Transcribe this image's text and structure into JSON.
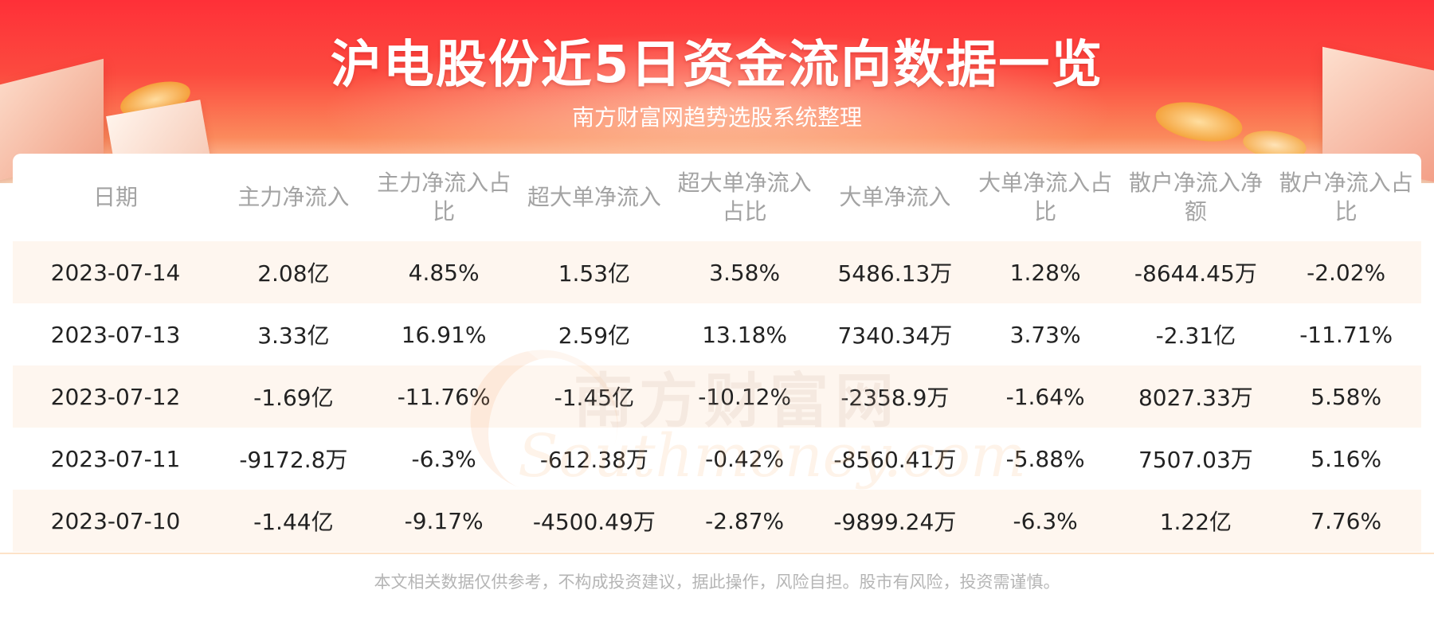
{
  "header": {
    "title": "沪电股份近5日资金流向数据一览",
    "subtitle": "南方财富网趋势选股系统整理"
  },
  "watermark": {
    "cn": "南方财富网",
    "en": "Southmoney.com"
  },
  "table": {
    "columns": [
      "日期",
      "主力净流入",
      "主力净流入占比",
      "超大单净流入",
      "超大单净流入占比",
      "大单净流入",
      "大单净流入占比",
      "散户净流入净额",
      "散户净流入占比"
    ],
    "rows": [
      [
        "2023-07-14",
        "2.08亿",
        "4.85%",
        "1.53亿",
        "3.58%",
        "5486.13万",
        "1.28%",
        "-8644.45万",
        "-2.02%"
      ],
      [
        "2023-07-13",
        "3.33亿",
        "16.91%",
        "2.59亿",
        "13.18%",
        "7340.34万",
        "3.73%",
        "-2.31亿",
        "-11.71%"
      ],
      [
        "2023-07-12",
        "-1.69亿",
        "-11.76%",
        "-1.45亿",
        "-10.12%",
        "-2358.9万",
        "-1.64%",
        "8027.33万",
        "5.58%"
      ],
      [
        "2023-07-11",
        "-9172.8万",
        "-6.3%",
        "-612.38万",
        "-0.42%",
        "-8560.41万",
        "-5.88%",
        "7507.03万",
        "5.16%"
      ],
      [
        "2023-07-10",
        "-1.44亿",
        "-9.17%",
        "-4500.49万",
        "-2.87%",
        "-9899.24万",
        "-6.3%",
        "1.22亿",
        "7.76%"
      ]
    ]
  },
  "footer": {
    "disclaimer": "本文相关数据仅供参考，不构成投资建议，据此操作，风险自担。股市有风险，投资需谨慎。"
  },
  "colors": {
    "banner_red": "#fe3038",
    "header_text": "#a3a3a3",
    "cell_text": "#222222",
    "row_stripe": "#fef5ec",
    "footer_text": "#b5b5b5"
  }
}
